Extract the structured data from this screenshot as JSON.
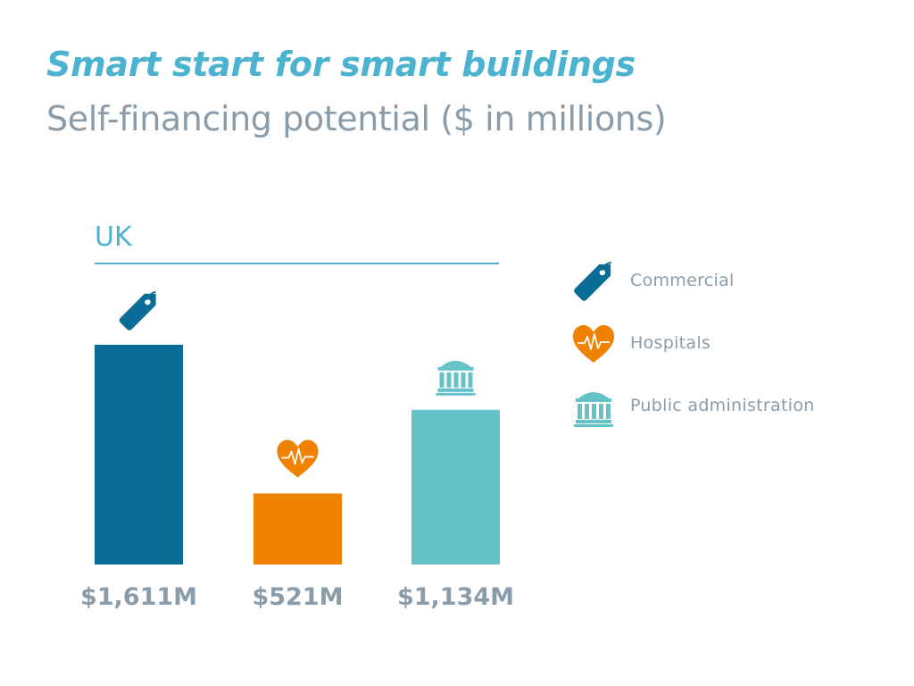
{
  "header": {
    "title": "Smart start for smart buildings",
    "subtitle": "Self-financing potential ($ in millions)"
  },
  "region": {
    "label": "UK"
  },
  "colors": {
    "commercial": "#0a6d95",
    "hospitals": "#ef8200",
    "public_administration": "#64c3c8",
    "accent": "#4bb3cf",
    "text_gray": "#8a9caa"
  },
  "chart_data": {
    "type": "bar",
    "title": "Smart start for smart buildings",
    "subtitle": "Self-financing potential ($ in millions)",
    "categories": [
      "Commercial",
      "Hospitals",
      "Public administration"
    ],
    "values": [
      1611,
      521,
      1134
    ],
    "data_labels": [
      "$1,611M",
      "$521M",
      "$1,134M"
    ],
    "icons": [
      "price-tag-icon",
      "heart-ecg-icon",
      "government-building-icon"
    ],
    "colors": [
      "#0a6d95",
      "#ef8200",
      "#64c3c8"
    ],
    "ylim": [
      0,
      1611
    ],
    "grid": false,
    "axes_visible": false,
    "legend_position": "right"
  },
  "legend": {
    "items": [
      {
        "label": "Commercial",
        "icon": "price-tag-icon",
        "color": "#0a6d95"
      },
      {
        "label": "Hospitals",
        "icon": "heart-ecg-icon",
        "color": "#ef8200"
      },
      {
        "label": "Public administration",
        "icon": "government-building-icon",
        "color": "#64c3c8"
      }
    ]
  }
}
